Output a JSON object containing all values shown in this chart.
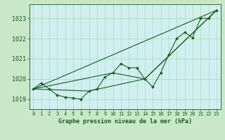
{
  "background_color": "#c8e8c8",
  "plot_bg_color": "#d0f0f0",
  "grid_color": "#b0d8b0",
  "line_color": "#1a5c1a",
  "title": "Graphe pression niveau de la mer (hPa)",
  "xlim": [
    -0.5,
    23.5
  ],
  "ylim": [
    1018.5,
    1023.7
  ],
  "yticks": [
    1019,
    1020,
    1021,
    1022,
    1023
  ],
  "xticks": [
    0,
    1,
    2,
    3,
    4,
    5,
    6,
    7,
    8,
    9,
    10,
    11,
    12,
    13,
    14,
    15,
    16,
    17,
    18,
    19,
    20,
    21,
    22,
    23
  ],
  "series1_x": [
    0,
    1,
    2,
    3,
    4,
    5,
    6,
    7,
    8,
    9,
    10,
    11,
    12,
    13,
    14,
    15,
    16,
    17,
    18,
    19,
    20,
    21,
    22,
    23
  ],
  "series1_y": [
    1019.5,
    1019.8,
    1019.5,
    1019.2,
    1019.1,
    1019.05,
    1019.0,
    1019.4,
    1019.5,
    1020.1,
    1020.3,
    1020.75,
    1020.55,
    1020.55,
    1020.0,
    1019.6,
    1020.3,
    1021.2,
    1022.0,
    1022.3,
    1022.05,
    1023.0,
    1023.0,
    1023.4
  ],
  "series2_x": [
    0,
    23
  ],
  "series2_y": [
    1019.5,
    1023.4
  ],
  "series3_x": [
    0,
    10,
    14,
    23
  ],
  "series3_y": [
    1019.5,
    1020.3,
    1020.0,
    1023.4
  ],
  "series4_x": [
    0,
    7,
    14,
    23
  ],
  "series4_y": [
    1019.5,
    1019.4,
    1020.0,
    1023.4
  ]
}
